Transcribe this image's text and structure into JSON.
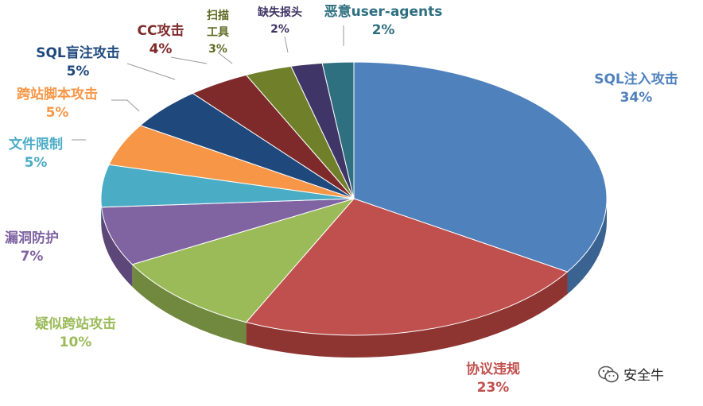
{
  "chart_data": {
    "type": "pie",
    "title": "",
    "unit": "%",
    "slices": [
      {
        "label": "SQL注入攻击",
        "value": 34,
        "value_label": "34%",
        "color": "#4F81BD",
        "side": "#3A6391",
        "text_color": "#4F81BD"
      },
      {
        "label": "协议违规",
        "value": 23,
        "value_label": "23%",
        "color": "#C0504D",
        "side": "#8E3532",
        "text_color": "#C0504D"
      },
      {
        "label": "疑似跨站攻击",
        "value": 10,
        "value_label": "10%",
        "color": "#9BBB59",
        "side": "#71893E",
        "text_color": "#9BBB59"
      },
      {
        "label": "漏洞防护",
        "value": 7,
        "value_label": "7%",
        "color": "#8064A2",
        "side": "#5C4778",
        "text_color": "#8064A2"
      },
      {
        "label": "文件限制",
        "value": 5,
        "value_label": "5%",
        "color": "#4BACC6",
        "side": "#337F93",
        "text_color": "#4BACC6"
      },
      {
        "label": "跨站脚本攻击",
        "value": 5,
        "value_label": "5%",
        "color": "#F79646",
        "side": "#B86C2E",
        "text_color": "#F79646"
      },
      {
        "label": "SQL盲注攻击",
        "value": 5,
        "value_label": "5%",
        "color": "#1F497D",
        "side": "#15325A",
        "text_color": "#1F497D"
      },
      {
        "label": "CC攻击",
        "value": 4,
        "value_label": "4%",
        "color": "#7F2A2A",
        "side": "#5A1D1D",
        "text_color": "#7F2A2A"
      },
      {
        "label": "扫描工具",
        "label_lines": [
          "扫描",
          "工具"
        ],
        "value": 3,
        "value_label": "3%",
        "color": "#6F7F2A",
        "side": "#4F5B1D",
        "text_color": "#5E6B22"
      },
      {
        "label": "缺失报头",
        "value": 2,
        "value_label": "2%",
        "color": "#3F3566",
        "side": "#2C2547",
        "text_color": "#3F3566"
      },
      {
        "label": "恶意user-agents",
        "value": 2,
        "value_label": "2%",
        "color": "#2E6F80",
        "side": "#1F4E5A",
        "text_color": "#2E6F80"
      }
    ],
    "legend": "none",
    "style": "3d-pie"
  },
  "watermark": {
    "text": "安全牛",
    "icon": "wechat-icon"
  }
}
